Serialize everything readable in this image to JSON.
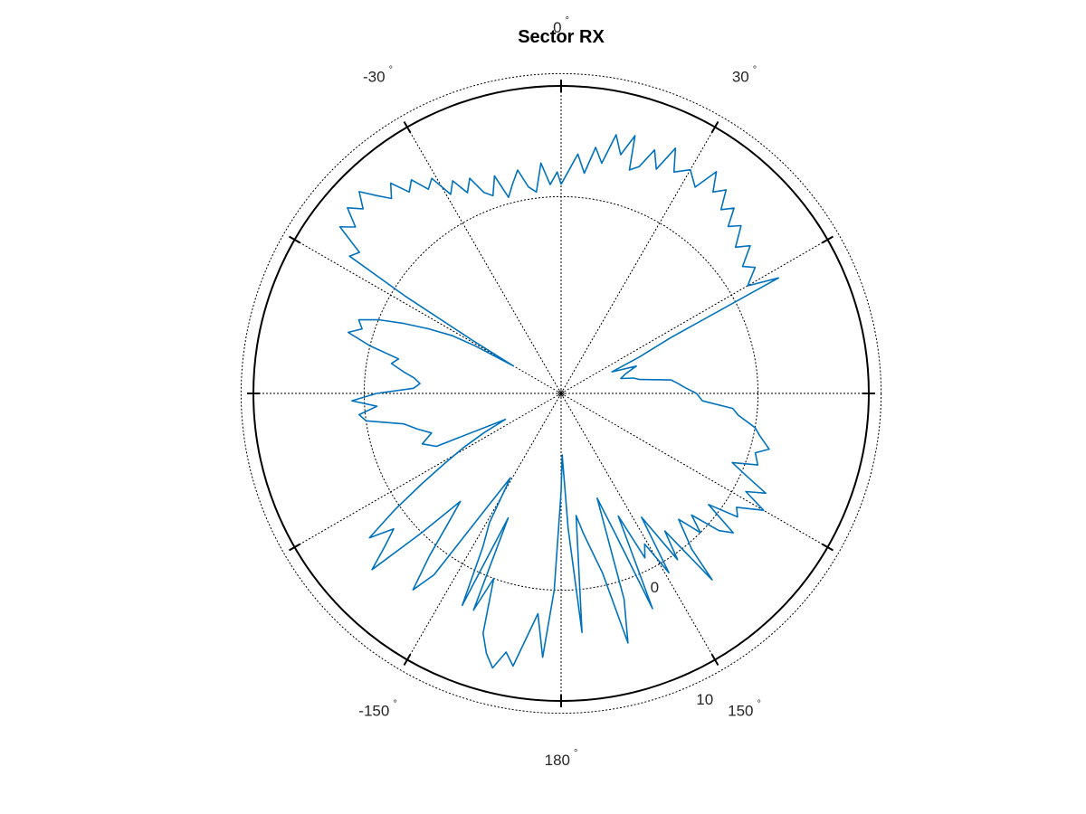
{
  "chart_data": {
    "type": "line",
    "subtype": "polar",
    "title": "Sector RX",
    "theta_zero": "top",
    "theta_direction": "clockwise",
    "angle_ticks": [
      0,
      30,
      60,
      90,
      120,
      150,
      180,
      -150,
      -120,
      -90,
      -60,
      -30
    ],
    "angle_labels": [
      {
        "angle": 0,
        "text": "0"
      },
      {
        "angle": 30,
        "text": "30"
      },
      {
        "angle": 150,
        "text": "150"
      },
      {
        "angle": 180,
        "text": "180"
      },
      {
        "angle": -150,
        "text": "-150"
      },
      {
        "angle": -30,
        "text": "-30"
      }
    ],
    "degree_symbol": "°",
    "r_ticks": [
      0,
      10
    ],
    "r_tick_labels": [
      "0",
      "10"
    ],
    "r_axis_angle_deg": 156,
    "r_range": [
      -16,
      9
    ],
    "grid": true,
    "series": [
      {
        "color": "#0072bd",
        "points": [
          [
            0,
            1.0
          ],
          [
            4,
            3.5
          ],
          [
            6,
            2.0
          ],
          [
            8,
            4.2
          ],
          [
            10,
            3.0
          ],
          [
            12,
            5.5
          ],
          [
            14,
            4.0
          ],
          [
            16,
            5.8
          ],
          [
            17,
            3.0
          ],
          [
            19,
            3.5
          ],
          [
            21,
            5.2
          ],
          [
            23,
            3.8
          ],
          [
            25,
            6.0
          ],
          [
            27,
            4.2
          ],
          [
            30,
            5.0
          ],
          [
            33,
            4.0
          ],
          [
            35,
            6.0
          ],
          [
            37,
            4.5
          ],
          [
            39,
            5.3
          ],
          [
            41,
            3.8
          ],
          [
            43,
            4.6
          ],
          [
            45,
            3.2
          ],
          [
            47,
            4.0
          ],
          [
            50,
            2.5
          ],
          [
            52,
            3.5
          ],
          [
            55,
            2.0
          ],
          [
            57,
            2.8
          ],
          [
            60,
            1.5
          ],
          [
            62,
            4.0
          ],
          [
            63,
            -6.0
          ],
          [
            65,
            -9.0
          ],
          [
            67,
            -11.5
          ],
          [
            70,
            -9.5
          ],
          [
            73,
            -10.5
          ],
          [
            76,
            -11.0
          ],
          [
            78,
            -10.0
          ],
          [
            80,
            -9.5
          ],
          [
            83,
            -7.0
          ],
          [
            85,
            -6.5
          ],
          [
            87,
            -6.0
          ],
          [
            90,
            -5.0
          ],
          [
            93,
            -4.5
          ],
          [
            95,
            -2.0
          ],
          [
            97,
            -1.5
          ],
          [
            100,
            0.0
          ],
          [
            102,
            0.5
          ],
          [
            105,
            1.5
          ],
          [
            107,
            0.5
          ],
          [
            110,
            1.0
          ],
          [
            112,
            -1.0
          ],
          [
            114,
            0.5
          ],
          [
            116,
            2.5
          ],
          [
            118,
            1.0
          ],
          [
            120,
            3.0
          ],
          [
            123,
            1.0
          ],
          [
            125,
            1.5
          ],
          [
            127,
            -1.0
          ],
          [
            129,
            2.0
          ],
          [
            131,
            1.0
          ],
          [
            133,
            -1.5
          ],
          [
            135,
            0.0
          ],
          [
            137,
            -2.0
          ],
          [
            140,
            0.5
          ],
          [
            141,
            3.5
          ],
          [
            143,
            -2.0
          ],
          [
            145,
            0.5
          ],
          [
            147,
            -4.0
          ],
          [
            149,
            1.0
          ],
          [
            151,
            -2.0
          ],
          [
            153,
            -1.0
          ],
          [
            155,
            -5.0
          ],
          [
            157,
            3.0
          ],
          [
            159,
            -4.0
          ],
          [
            161,
            -7.0
          ],
          [
            163,
            1.5
          ],
          [
            165,
            5.0
          ],
          [
            167,
            -1.0
          ],
          [
            169,
            -3.0
          ],
          [
            171,
            -4.5
          ],
          [
            173,
            -6.0
          ],
          [
            175,
            3.5
          ],
          [
            177,
            -5.0
          ],
          [
            179,
            -11.0
          ],
          [
            180,
            -8.0
          ],
          [
            182,
            0.0
          ],
          [
            184,
            5.5
          ],
          [
            186,
            2.0
          ],
          [
            188,
            4.0
          ],
          [
            190,
            6.5
          ],
          [
            192,
            5.5
          ],
          [
            194,
            7.0
          ],
          [
            196,
            6.0
          ],
          [
            198,
            4.5
          ],
          [
            200,
            0.0
          ],
          [
            202,
            3.0
          ],
          [
            203,
            -5.0
          ],
          [
            205,
            3.0
          ],
          [
            207,
            -2.0
          ],
          [
            209,
            -4.0
          ],
          [
            211,
            -8.0
          ],
          [
            213,
            -5.0
          ],
          [
            215,
            2.0
          ],
          [
            217,
            4.0
          ],
          [
            219,
            1.0
          ],
          [
            221,
            -2.0
          ],
          [
            223,
            -4.0
          ],
          [
            225,
            0.0
          ],
          [
            227,
            5.0
          ],
          [
            229,
            3.0
          ],
          [
            231,
            1.5
          ],
          [
            233,
            3.5
          ],
          [
            235,
            0.5
          ],
          [
            237,
            -2.5
          ],
          [
            239,
            -5.0
          ],
          [
            241,
            -7.0
          ],
          [
            243,
            -9.0
          ],
          [
            245,
            -11.0
          ],
          [
            247,
            -5.0
          ],
          [
            250,
            -4.0
          ],
          [
            253,
            -5.0
          ],
          [
            256,
            -4.0
          ],
          [
            259,
            -3.0
          ],
          [
            262,
            0.0
          ],
          [
            264,
            0.5
          ],
          [
            266,
            -1.0
          ],
          [
            268,
            1.0
          ],
          [
            270,
            -1.0
          ],
          [
            272,
            -4.0
          ],
          [
            274,
            -4.5
          ],
          [
            276,
            -4.0
          ],
          [
            278,
            -3.0
          ],
          [
            280,
            -2.0
          ],
          [
            282,
            -2.5
          ],
          [
            284,
            0.0
          ],
          [
            286,
            2.0
          ],
          [
            288,
            1.0
          ],
          [
            290,
            1.5
          ],
          [
            292,
            0.0
          ],
          [
            294,
            -2.0
          ],
          [
            296,
            -4.0
          ],
          [
            298,
            -6.0
          ],
          [
            299,
            -8.0
          ],
          [
            300,
            -11.5
          ],
          [
            301,
            -7.5
          ],
          [
            302,
            -1.0
          ],
          [
            303,
            4.5
          ],
          [
            305,
            4.0
          ],
          [
            307,
            6.5
          ],
          [
            309,
            5.5
          ],
          [
            311,
            7.0
          ],
          [
            313,
            6.0
          ],
          [
            315,
            7.2
          ],
          [
            317,
            6.0
          ],
          [
            319,
            5.0
          ],
          [
            321,
            6.0
          ],
          [
            323,
            4.5
          ],
          [
            325,
            5.2
          ],
          [
            327,
            3.8
          ],
          [
            329,
            4.4
          ],
          [
            331,
            2.5
          ],
          [
            333,
            3.4
          ],
          [
            335,
            2.0
          ],
          [
            337,
            3.0
          ],
          [
            339,
            1.5
          ],
          [
            341,
            1.0
          ],
          [
            343,
            2.5
          ],
          [
            345,
            0.5
          ],
          [
            347,
            1.5
          ],
          [
            349,
            2.5
          ],
          [
            351,
            1.0
          ],
          [
            353,
            0.5
          ],
          [
            355,
            2.8
          ],
          [
            357,
            1.0
          ],
          [
            359,
            2.0
          ]
        ]
      }
    ]
  }
}
